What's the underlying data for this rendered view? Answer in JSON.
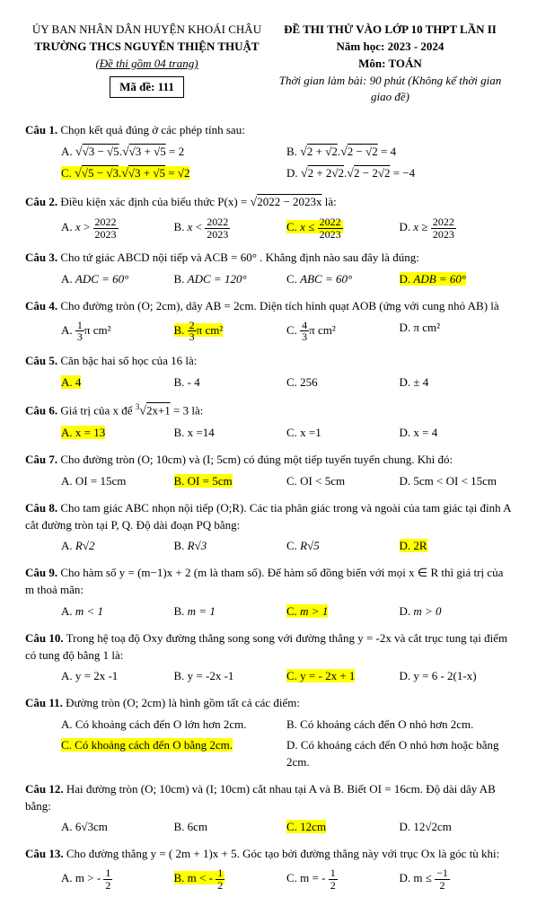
{
  "header": {
    "l1": "ỦY BAN NHÂN DÂN HUYỆN KHOÁI CHÂU",
    "l2": "TRƯỜNG THCS NGUYỄN THIỆN THUẬT",
    "l3": "(Đề thi gồm 04 trang)",
    "code_label": "Mã đề:",
    "code_value": "111",
    "r1": "ĐỀ THI THỬ VÀO LỚP 10 THPT LẦN II",
    "r2": "Năm học: 2023 - 2024",
    "r3": "Môn: TOÁN",
    "r4": "Thời gian làm bài: 90 phút (Không kể thời gian giao đề)"
  },
  "q1": {
    "stem": "Chọn kết quả đúng ở các phép tính sau:",
    "A": "= 2",
    "B": "= 4",
    "C": "= √2",
    "D": "= −4"
  },
  "q2": {
    "stem_a": "Điều kiện xác định của biểu thức  P(x) = ",
    "stem_b": " là:"
  },
  "q3": {
    "stem": "Cho tứ giác ABCD nội tiếp và  ACB = 60° . Khẳng định nào sau đây là đúng:",
    "A": "ADC = 60°",
    "B": "ADC = 120°",
    "C": "ABC = 60°",
    "D": "ADB = 60°"
  },
  "q4": {
    "stem": "Cho đường  tròn (O; 2cm), dây AB = 2cm. Diện tích hình quạt AOB (ứng với cung nhỏ AB) là",
    "D": "π cm²"
  },
  "q5": {
    "stem": "Căn bậc hai số học của 16 là:",
    "A": "4",
    "B": "- 4",
    "C": "256",
    "D": "± 4"
  },
  "q6": {
    "stem_a": "Giá trị của x để ",
    "stem_b": " = 3 là:",
    "A": "x = 13",
    "B": "x =14",
    "C": "x =1",
    "D": "x = 4"
  },
  "q7": {
    "stem": "Cho đường tròn (O; 10cm) và (I; 5cm) có đúng một tiếp tuyến tuyến chung. Khi đó:",
    "A": "OI = 15cm",
    "B": "OI = 5cm",
    "C": "OI < 5cm",
    "D": "5cm < OI < 15cm"
  },
  "q8": {
    "stem": "Cho tam giác ABC nhọn nội tiếp (O;R). Các tia phân giác trong và ngoài của tam giác tại đỉnh A cắt đường tròn tại P, Q. Độ dài đoạn PQ bằng:",
    "A": "R√2",
    "B": "R√3",
    "C": "R√5",
    "D": "2R"
  },
  "q9": {
    "stem": "Cho hàm số  y = (m−1)x + 2  (m là tham số). Để hàm số đồng biến với mọi x ∈ R thì giá trị của m thoả mãn:",
    "A": "m < 1",
    "B": "m = 1",
    "C": "m > 1",
    "D": "m > 0"
  },
  "q10": {
    "stem": "Trong hệ toạ độ Oxy đường thẳng song song với đường thẳng y = -2x và cắt trục tung tại điểm có tung độ bằng 1 là:",
    "A": "y = 2x -1",
    "B": "y = -2x -1",
    "C": "y = - 2x + 1",
    "D": "y = 6 - 2(1-x)"
  },
  "q11": {
    "stem": "Đường tròn (O; 2cm) là hình gồm tất cả các điểm:",
    "A": "Có khoảng cách đến O lớn hơn 2cm.",
    "B": "Có khoảng cách đến O nhỏ hơn 2cm.",
    "C": "Có khoảng cách đến O bằng 2cm.",
    "D": "Có khoảng cách đến O nhỏ hơn hoặc bằng 2cm."
  },
  "q12": {
    "stem": "Hai đường tròn (O; 10cm) và (I; 10cm) cắt nhau tại A và B. Biết OI = 16cm. Độ dài dây AB bằng:",
    "A": "6√3cm",
    "B": "6cm",
    "C": "12cm",
    "D": "12√2cm"
  },
  "q13": {
    "stem": "Cho đường thẳng y = ( 2m + 1)x + 5. Góc tạo bởi đường thẳng này với trục Ox là góc tù khi:"
  },
  "labels": {
    "cau": "Câu",
    "A": "A.",
    "B": "B.",
    "C": "C.",
    "D": "D."
  }
}
